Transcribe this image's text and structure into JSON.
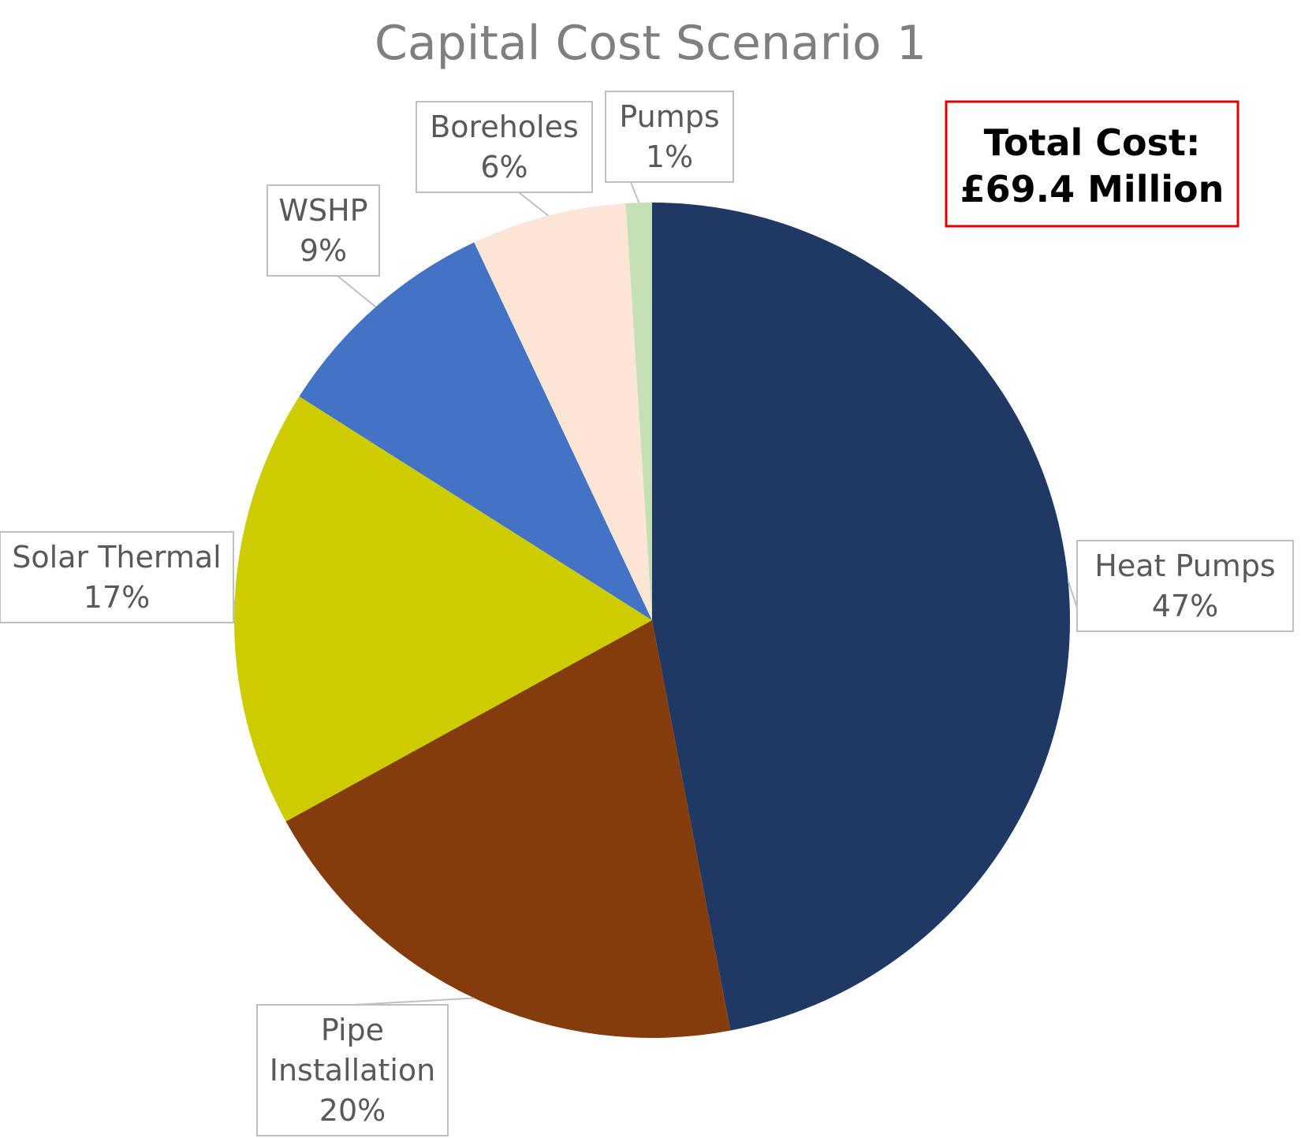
{
  "chart_data": {
    "type": "pie",
    "title": "Capital Cost Scenario 1",
    "slices": [
      {
        "label": "Heat Pumps",
        "value": 47,
        "value_label": "47%",
        "color": "#203864"
      },
      {
        "label": "Pipe Installation",
        "value": 20,
        "value_label": "20%",
        "color": "#843c0c"
      },
      {
        "label": "Solar Thermal",
        "value": 17,
        "value_label": "17%",
        "color": "#cccc00"
      },
      {
        "label": "WSHP",
        "value": 9,
        "value_label": "9%",
        "color": "#4472c4"
      },
      {
        "label": "Boreholes",
        "value": 6,
        "value_label": "6%",
        "color": "#fbe5d6"
      },
      {
        "label": "Pumps",
        "value": 1,
        "value_label": "1%",
        "color": "#c5e0b4"
      }
    ],
    "annotation": {
      "line1": "Total Cost:",
      "line2": "£69.4 Million",
      "border_color": "#e00000"
    }
  }
}
